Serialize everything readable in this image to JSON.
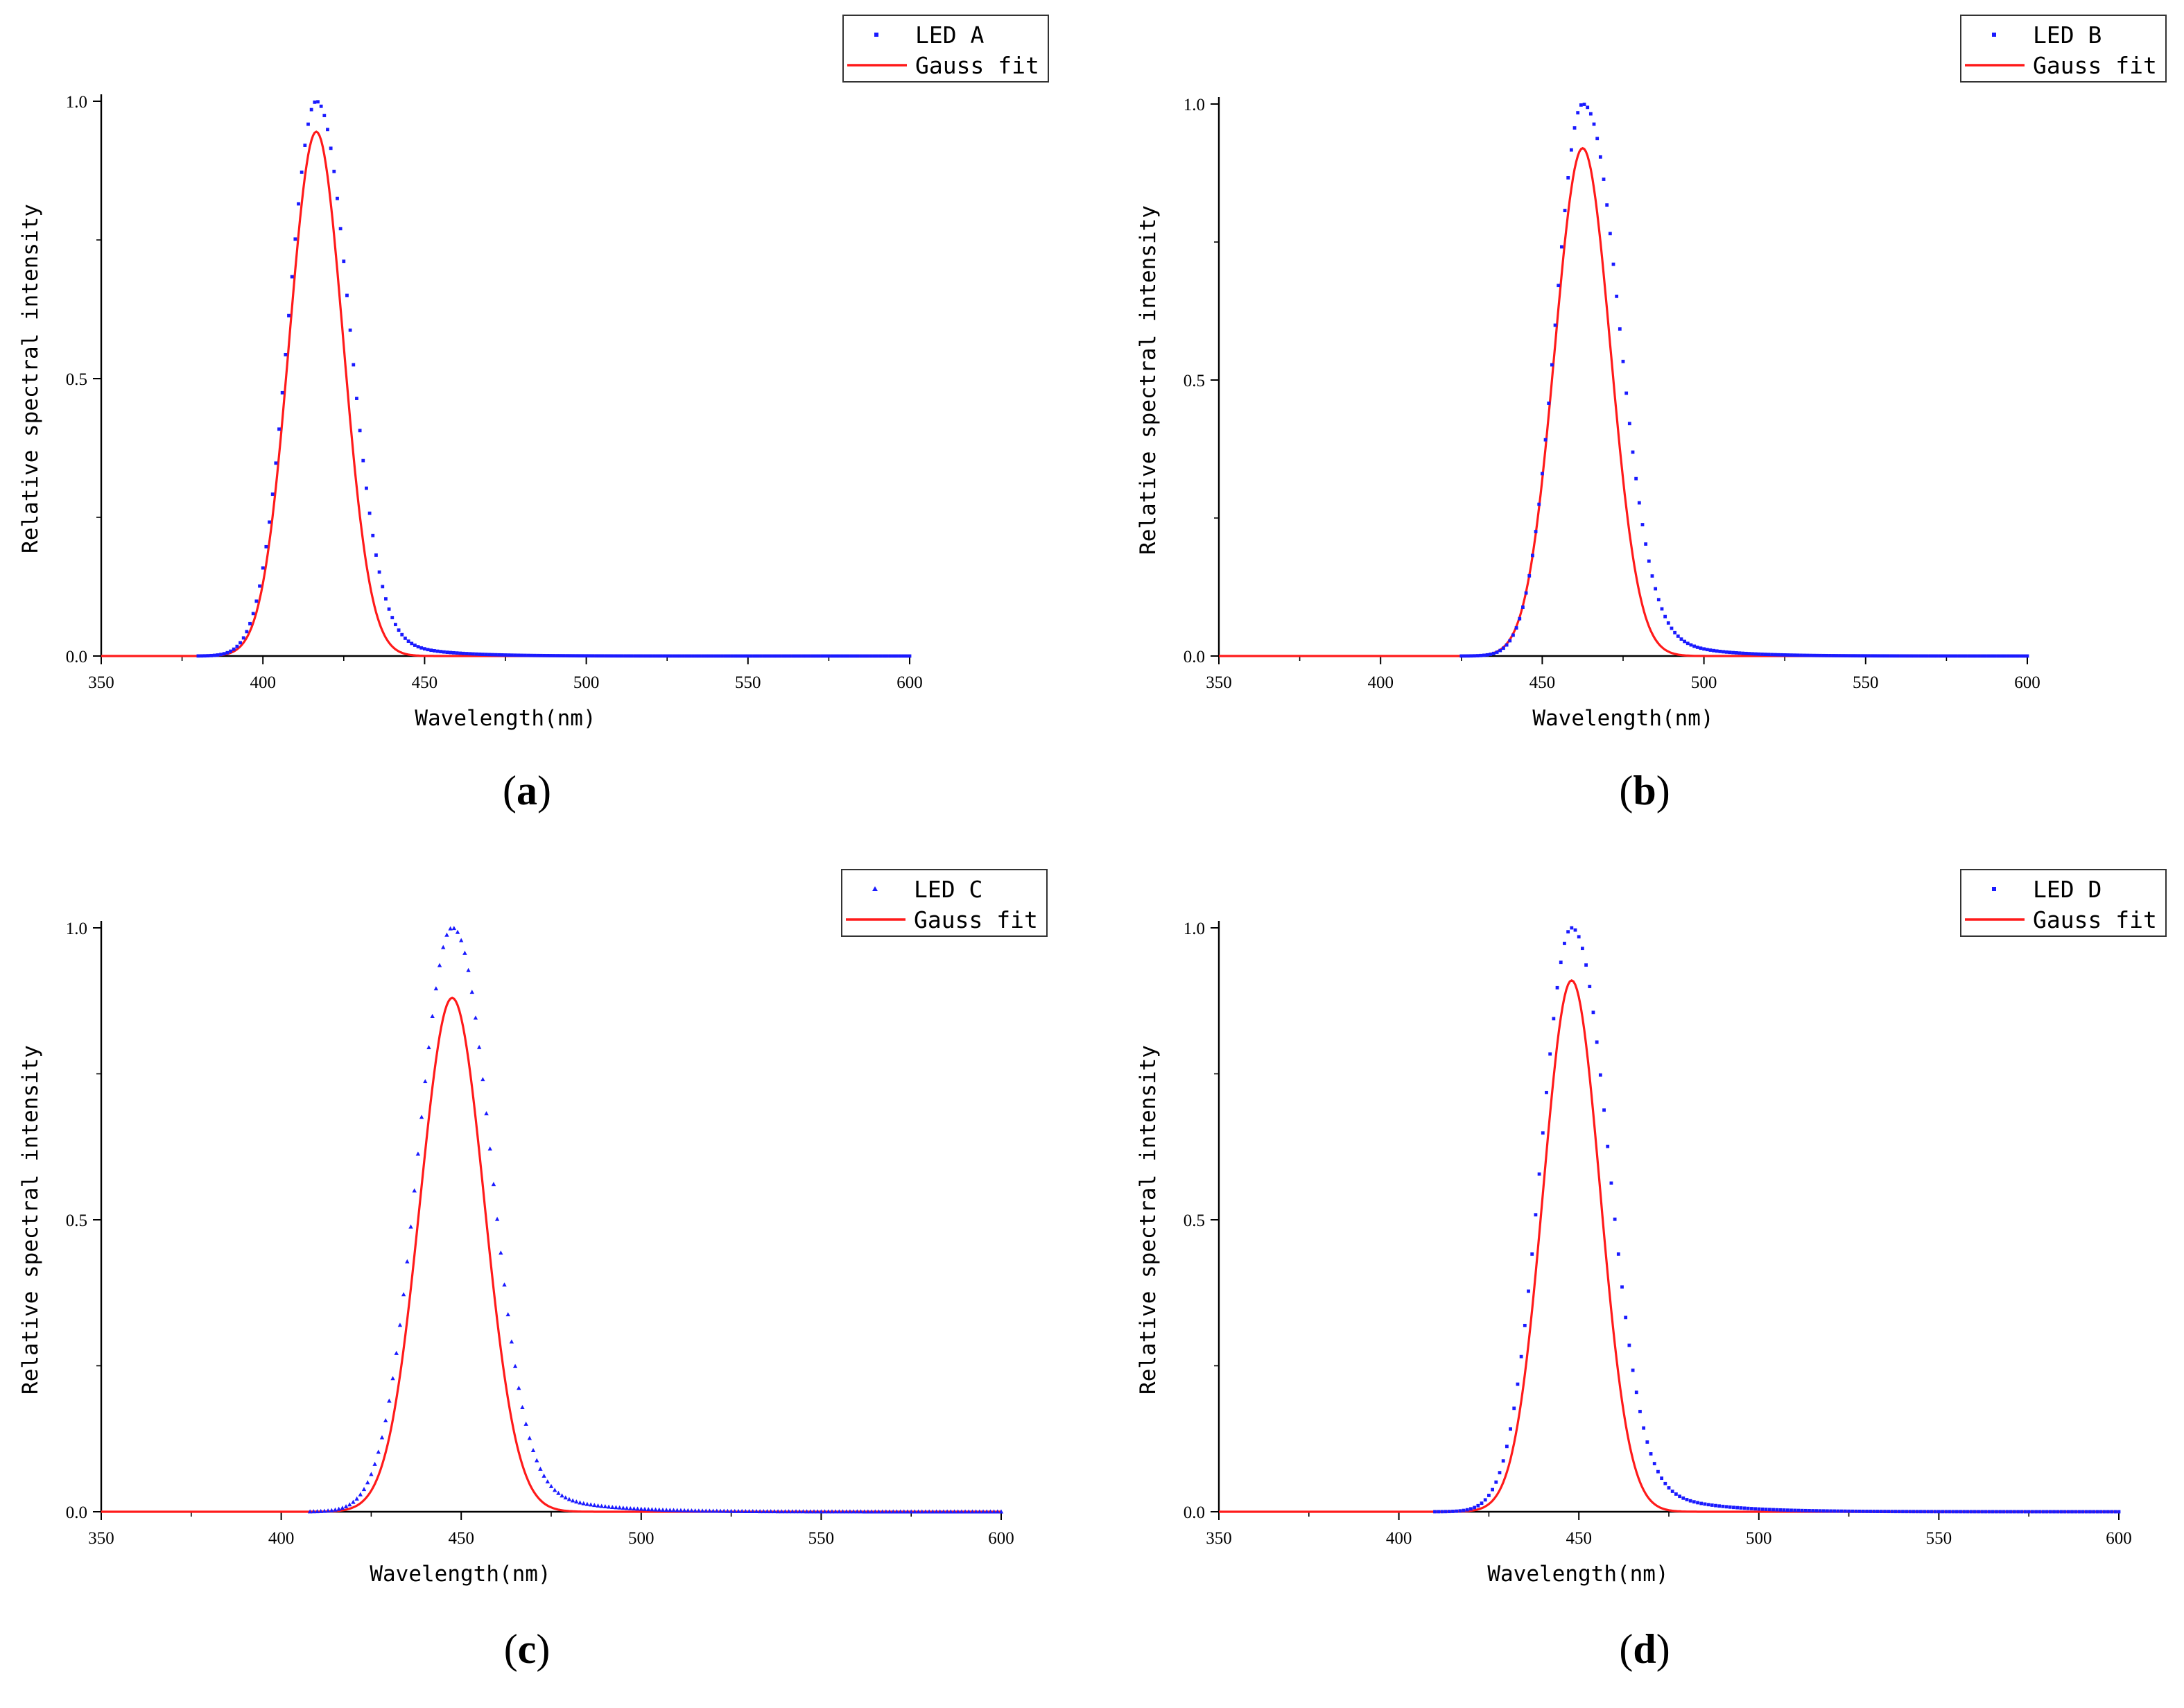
{
  "colors": {
    "measured": "#1a1aff",
    "fit": "#ff1a1a",
    "axis": "#000000",
    "background": "#ffffff"
  },
  "chart_data": [
    {
      "type": "scatter",
      "panel_label": "a",
      "xlabel": "Wavelength(nm)",
      "ylabel": "Relative spectral intensity",
      "xlim": [
        350,
        600
      ],
      "ylim": [
        0,
        1
      ],
      "x_ticks": [
        "350",
        "400",
        "450",
        "500",
        "550",
        "600"
      ],
      "y_ticks": [
        "0.0",
        "0.5",
        "1.0"
      ],
      "legend": [
        "LED A",
        "Gauss fit"
      ],
      "legend_position": "top-right",
      "marker": "dot",
      "peak_wavelength": 416.5,
      "measured_peak": 1.0,
      "fit_amplitude": 0.945,
      "fit_sigma": 8.3,
      "measured_sigma_left": 8.6,
      "measured_sigma_right": 9.5,
      "measured_tail_amplitude": 0.12,
      "measured_tail_decay": 14,
      "series": [
        {
          "name": "LED A",
          "kind": "scatter",
          "x_start": 380,
          "x_end": 600,
          "x_step": 1
        },
        {
          "name": "Gauss fit",
          "kind": "line",
          "x_start": 350,
          "x_end": 600
        }
      ]
    },
    {
      "type": "scatter",
      "panel_label": "b",
      "xlabel": "Wavelength(nm)",
      "ylabel": "Relative spectral intensity",
      "xlim": [
        350,
        600
      ],
      "ylim": [
        0,
        1
      ],
      "x_ticks": [
        "350",
        "400",
        "450",
        "500",
        "550",
        "600"
      ],
      "y_ticks": [
        "0.0",
        "0.5",
        "1.0"
      ],
      "legend": [
        "LED B",
        "Gauss fit"
      ],
      "legend_position": "top-right",
      "marker": "dot",
      "peak_wavelength": 462.5,
      "measured_peak": 1.0,
      "fit_amplitude": 0.92,
      "fit_sigma": 8.6,
      "measured_sigma_left": 8.4,
      "measured_sigma_right": 10.2,
      "measured_tail_amplitude": 0.17,
      "measured_tail_decay": 14,
      "series": [
        {
          "name": "LED B",
          "kind": "scatter",
          "x_start": 425,
          "x_end": 600,
          "x_step": 1
        },
        {
          "name": "Gauss fit",
          "kind": "line",
          "x_start": 350,
          "x_end": 600
        }
      ]
    },
    {
      "type": "scatter",
      "panel_label": "c",
      "xlabel": "Wavelength(nm)",
      "ylabel": "Relative spectral intensity",
      "xlim": [
        350,
        600
      ],
      "ylim": [
        0,
        1
      ],
      "x_ticks": [
        "350",
        "400",
        "450",
        "500",
        "550",
        "600"
      ],
      "y_ticks": [
        "0.0",
        "0.5",
        "1.0"
      ],
      "legend": [
        "LED C",
        "Gauss fit"
      ],
      "legend_position": "top-right",
      "marker": "triangle",
      "peak_wavelength": 447.5,
      "measured_peak": 1.0,
      "fit_amplitude": 0.88,
      "fit_sigma": 8.9,
      "measured_sigma_left": 9.6,
      "measured_sigma_right": 9.8,
      "measured_tail_amplitude": 0.15,
      "measured_tail_decay": 15,
      "series": [
        {
          "name": "LED C",
          "kind": "scatter",
          "x_start": 408,
          "x_end": 600,
          "x_step": 1
        },
        {
          "name": "Gauss fit",
          "kind": "line",
          "x_start": 350,
          "x_end": 600
        }
      ]
    },
    {
      "type": "scatter",
      "panel_label": "d",
      "xlabel": "Wavelength(nm)",
      "ylabel": "Relative spectral intensity",
      "xlim": [
        350,
        600
      ],
      "ylim": [
        0,
        1
      ],
      "x_ticks": [
        "350",
        "400",
        "450",
        "500",
        "550",
        "600"
      ],
      "y_ticks": [
        "0.0",
        "0.5",
        "1.0"
      ],
      "legend": [
        "LED D",
        "Gauss fit"
      ],
      "legend_position": "top-right",
      "marker": "dot",
      "peak_wavelength": 448,
      "measured_peak": 1.0,
      "fit_amplitude": 0.91,
      "fit_sigma": 7.9,
      "measured_sigma_left": 8.6,
      "measured_sigma_right": 9.4,
      "measured_tail_amplitude": 0.15,
      "measured_tail_decay": 15,
      "series": [
        {
          "name": "LED D",
          "kind": "scatter",
          "x_start": 410,
          "x_end": 600,
          "x_step": 1
        },
        {
          "name": "Gauss fit",
          "kind": "line",
          "x_start": 350,
          "x_end": 600
        }
      ]
    }
  ]
}
